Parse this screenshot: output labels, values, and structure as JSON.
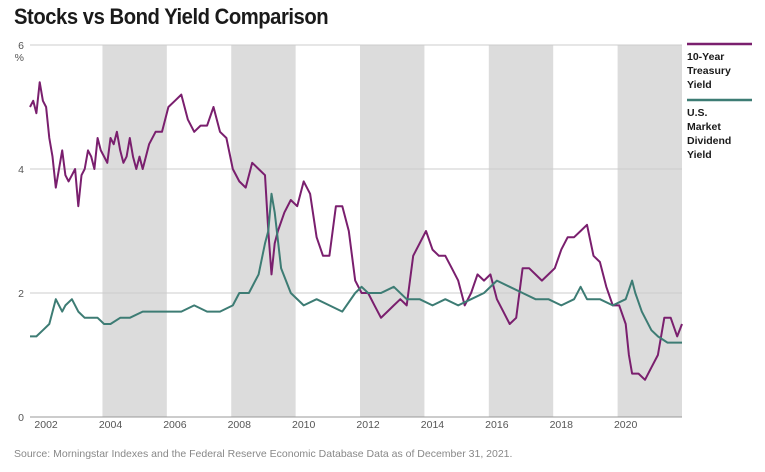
{
  "title": "Stocks vs Bond Yield Comparison",
  "source": "Source: Morningstar Indexes and the Federal Reserve Economic Database Data as of December 31, 2021.",
  "colors": {
    "treasury": "#7a1f6e",
    "dividend": "#3d7c74",
    "band": "#dcdcdc",
    "grid": "#cccccc"
  },
  "chart_data": {
    "type": "line",
    "title": "Stocks vs Bond Yield Comparison",
    "xlabel": "",
    "ylabel": "%",
    "y_unit_label": "%",
    "xlim": [
      2001.5,
      2021.75
    ],
    "ylim": [
      0,
      6
    ],
    "y_ticks": [
      0,
      2,
      4,
      6
    ],
    "x_ticks": [
      2002,
      2004,
      2006,
      2008,
      2010,
      2012,
      2014,
      2016,
      2018,
      2020
    ],
    "shaded_bands": [
      [
        2003.75,
        2005.75
      ],
      [
        2007.75,
        2009.75
      ],
      [
        2011.75,
        2013.75
      ],
      [
        2015.75,
        2017.75
      ],
      [
        2019.75,
        2021.75
      ]
    ],
    "grid": true,
    "legend_position": "right",
    "series": [
      {
        "name": "10-Year Treasury Yield",
        "color": "#7a1f6e",
        "x": [
          2001.5,
          2001.6,
          2001.7,
          2001.8,
          2001.9,
          2002.0,
          2002.1,
          2002.2,
          2002.3,
          2002.4,
          2002.5,
          2002.6,
          2002.7,
          2002.8,
          2002.9,
          2003.0,
          2003.1,
          2003.2,
          2003.3,
          2003.4,
          2003.5,
          2003.6,
          2003.7,
          2003.8,
          2003.9,
          2004.0,
          2004.1,
          2004.2,
          2004.3,
          2004.4,
          2004.5,
          2004.6,
          2004.7,
          2004.8,
          2004.9,
          2005.0,
          2005.2,
          2005.4,
          2005.6,
          2005.8,
          2006.0,
          2006.2,
          2006.4,
          2006.6,
          2006.8,
          2007.0,
          2007.2,
          2007.4,
          2007.6,
          2007.8,
          2008.0,
          2008.2,
          2008.4,
          2008.6,
          2008.8,
          2008.9,
          2009.0,
          2009.1,
          2009.2,
          2009.4,
          2009.6,
          2009.8,
          2010.0,
          2010.2,
          2010.4,
          2010.6,
          2010.8,
          2011.0,
          2011.2,
          2011.4,
          2011.6,
          2011.8,
          2012.0,
          2012.2,
          2012.4,
          2012.6,
          2012.8,
          2013.0,
          2013.2,
          2013.4,
          2013.6,
          2013.8,
          2014.0,
          2014.2,
          2014.4,
          2014.6,
          2014.8,
          2015.0,
          2015.2,
          2015.4,
          2015.6,
          2015.8,
          2016.0,
          2016.2,
          2016.4,
          2016.6,
          2016.8,
          2017.0,
          2017.2,
          2017.4,
          2017.6,
          2017.8,
          2018.0,
          2018.2,
          2018.4,
          2018.6,
          2018.8,
          2019.0,
          2019.2,
          2019.4,
          2019.6,
          2019.8,
          2020.0,
          2020.1,
          2020.2,
          2020.4,
          2020.6,
          2020.8,
          2021.0,
          2021.2,
          2021.4,
          2021.6,
          2021.75
        ],
        "values": [
          5.0,
          5.1,
          4.9,
          5.4,
          5.1,
          5.0,
          4.5,
          4.2,
          3.7,
          4.0,
          4.3,
          3.9,
          3.8,
          3.9,
          4.0,
          3.4,
          3.9,
          4.0,
          4.3,
          4.2,
          4.0,
          4.5,
          4.3,
          4.2,
          4.1,
          4.5,
          4.4,
          4.6,
          4.3,
          4.1,
          4.2,
          4.5,
          4.2,
          4.0,
          4.2,
          4.0,
          4.4,
          4.6,
          4.6,
          5.0,
          5.1,
          5.2,
          4.8,
          4.6,
          4.7,
          4.7,
          5.0,
          4.6,
          4.5,
          4.0,
          3.8,
          3.7,
          4.1,
          4.0,
          3.9,
          3.0,
          2.3,
          2.8,
          3.0,
          3.3,
          3.5,
          3.4,
          3.8,
          3.6,
          2.9,
          2.6,
          2.6,
          3.4,
          3.4,
          3.0,
          2.2,
          2.0,
          2.0,
          1.8,
          1.6,
          1.7,
          1.8,
          1.9,
          1.8,
          2.6,
          2.8,
          3.0,
          2.7,
          2.6,
          2.6,
          2.4,
          2.2,
          1.8,
          2.0,
          2.3,
          2.2,
          2.3,
          1.9,
          1.7,
          1.5,
          1.6,
          2.4,
          2.4,
          2.3,
          2.2,
          2.3,
          2.4,
          2.7,
          2.9,
          2.9,
          3.0,
          3.1,
          2.6,
          2.5,
          2.1,
          1.8,
          1.8,
          1.5,
          1.0,
          0.7,
          0.7,
          0.6,
          0.8,
          1.0,
          1.6,
          1.6,
          1.3,
          1.5
        ]
      },
      {
        "name": "U.S. Market Dividend Yield",
        "color": "#3d7c74",
        "x": [
          2001.5,
          2001.7,
          2001.9,
          2002.1,
          2002.3,
          2002.5,
          2002.6,
          2002.8,
          2003.0,
          2003.2,
          2003.4,
          2003.6,
          2003.8,
          2004.0,
          2004.3,
          2004.6,
          2005.0,
          2005.4,
          2005.8,
          2006.2,
          2006.6,
          2007.0,
          2007.4,
          2007.8,
          2008.0,
          2008.3,
          2008.6,
          2008.8,
          2008.9,
          2009.0,
          2009.1,
          2009.3,
          2009.6,
          2010.0,
          2010.4,
          2010.8,
          2011.2,
          2011.6,
          2011.8,
          2012.0,
          2012.4,
          2012.8,
          2013.2,
          2013.6,
          2014.0,
          2014.4,
          2014.8,
          2015.2,
          2015.6,
          2016.0,
          2016.4,
          2016.8,
          2017.2,
          2017.6,
          2018.0,
          2018.4,
          2018.6,
          2018.8,
          2019.2,
          2019.6,
          2020.0,
          2020.2,
          2020.3,
          2020.5,
          2020.8,
          2021.0,
          2021.3,
          2021.6,
          2021.75
        ],
        "values": [
          1.3,
          1.3,
          1.4,
          1.5,
          1.9,
          1.7,
          1.8,
          1.9,
          1.7,
          1.6,
          1.6,
          1.6,
          1.5,
          1.5,
          1.6,
          1.6,
          1.7,
          1.7,
          1.7,
          1.7,
          1.8,
          1.7,
          1.7,
          1.8,
          2.0,
          2.0,
          2.3,
          2.8,
          3.0,
          3.6,
          3.3,
          2.4,
          2.0,
          1.8,
          1.9,
          1.8,
          1.7,
          2.0,
          2.1,
          2.0,
          2.0,
          2.1,
          1.9,
          1.9,
          1.8,
          1.9,
          1.8,
          1.9,
          2.0,
          2.2,
          2.1,
          2.0,
          1.9,
          1.9,
          1.8,
          1.9,
          2.1,
          1.9,
          1.9,
          1.8,
          1.9,
          2.2,
          2.0,
          1.7,
          1.4,
          1.3,
          1.2,
          1.2,
          1.2
        ]
      }
    ]
  }
}
